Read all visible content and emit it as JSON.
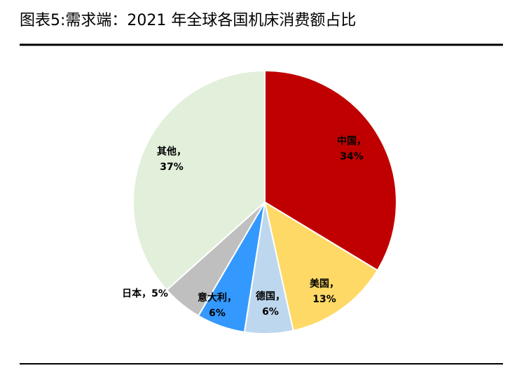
{
  "chart_data": {
    "type": "pie",
    "title": "图表5:需求端：2021 年全球各国机床消费额占比",
    "categories": [
      "中国，",
      "美国，",
      "德国，",
      "意大利，",
      "日本，",
      "其他，"
    ],
    "values": [
      34,
      13,
      6,
      6,
      5,
      37
    ],
    "value_labels": [
      "34%",
      "13%",
      "6%",
      "6%",
      "5%",
      "37%"
    ],
    "colors": [
      "#c00000",
      "#ffd966",
      "#bdd7ee",
      "#3399ff",
      "#bfbfbf",
      "#e2efda"
    ]
  }
}
